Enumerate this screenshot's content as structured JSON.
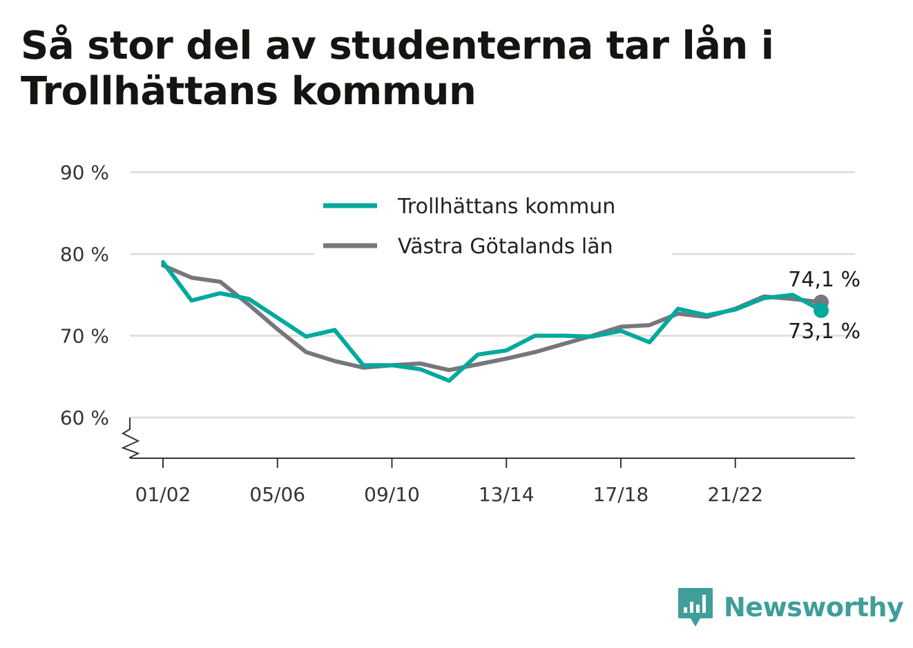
{
  "title": "Så stor del av studenterna tar lån i Trollhättans kommun",
  "brand": "Newsworthy",
  "chart_data": {
    "type": "line",
    "title": "Så stor del av studenterna tar lån i Trollhättans kommun",
    "xlabel": "",
    "ylabel": "",
    "ylim": [
      55,
      90
    ],
    "yticks": [
      60,
      70,
      80,
      90
    ],
    "ytick_labels": [
      "60 %",
      "70 %",
      "80 %",
      "90 %"
    ],
    "xtick_labels": [
      "01/02",
      "05/06",
      "09/10",
      "13/14",
      "17/18",
      "21/22"
    ],
    "xtick_indices": [
      0,
      4,
      8,
      12,
      16,
      20
    ],
    "categories": [
      "01/02",
      "02/03",
      "03/04",
      "04/05",
      "05/06",
      "06/07",
      "07/08",
      "08/09",
      "09/10",
      "10/11",
      "11/12",
      "12/13",
      "13/14",
      "14/15",
      "15/16",
      "16/17",
      "17/18",
      "18/19",
      "19/20",
      "20/21",
      "21/22",
      "22/23",
      "23/24",
      "24/25"
    ],
    "grid": true,
    "legend_position": "top-center",
    "y_axis_break": true,
    "series": [
      {
        "name": "Trollhättans kommun",
        "color": "#00a99d",
        "values": [
          79.0,
          74.3,
          75.2,
          74.5,
          72.2,
          69.9,
          70.7,
          66.4,
          66.4,
          65.9,
          64.5,
          67.7,
          68.2,
          70.0,
          70.0,
          69.9,
          70.6,
          69.2,
          73.3,
          72.5,
          73.2,
          74.6,
          75.0,
          73.1
        ],
        "end_label": "73,1 %"
      },
      {
        "name": "Västra Götalands län",
        "color": "#78767c",
        "values": [
          78.6,
          77.1,
          76.6,
          73.8,
          70.8,
          68.0,
          66.9,
          66.1,
          66.4,
          66.6,
          65.8,
          66.5,
          67.2,
          68.0,
          69.0,
          70.0,
          71.1,
          71.3,
          72.7,
          72.3,
          73.3,
          74.8,
          74.5,
          74.1
        ],
        "end_label": "74,1 %"
      }
    ]
  }
}
